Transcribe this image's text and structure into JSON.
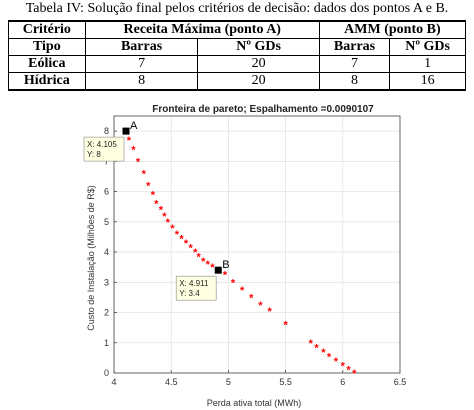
{
  "caption": "Tabela IV: Solução final pelos critérios de decisão: dados dos pontos A e B.",
  "table": {
    "header1": [
      "Critério",
      "Receita Máxima (ponto A)",
      "AMM (ponto B)"
    ],
    "header2": [
      "Tipo",
      "Barras",
      "Nº GDs",
      "Barras",
      "Nº GDs"
    ],
    "rows": [
      {
        "label": "Eólica",
        "values": [
          "7",
          "20",
          "7",
          "1"
        ]
      },
      {
        "label": "Hídrica",
        "values": [
          "8",
          "20",
          "8",
          "16"
        ]
      }
    ]
  },
  "chart_data": {
    "type": "scatter",
    "title": "Fronteira de pareto; Espalhamento =0.0090107",
    "xlabel": "Perda ativa total (MWh)",
    "ylabel": "Custo de Instalação (Milhões de R$)",
    "xlim": [
      4,
      6.5
    ],
    "ylim": [
      0,
      8.5
    ],
    "xticks": [
      "4",
      "4.5",
      "5",
      "5.5",
      "6",
      "6.5"
    ],
    "yticks": [
      "0",
      "1",
      "2",
      "3",
      "4",
      "5",
      "6",
      "7",
      "8"
    ],
    "grid": true,
    "marker_color": "#ff0000",
    "x": [
      4.105,
      4.13,
      4.17,
      4.21,
      4.26,
      4.3,
      4.34,
      4.37,
      4.41,
      4.44,
      4.47,
      4.51,
      4.55,
      4.59,
      4.63,
      4.67,
      4.71,
      4.74,
      4.78,
      4.82,
      4.86,
      4.911,
      4.97,
      5.04,
      5.12,
      5.2,
      5.28,
      5.36,
      5.5,
      5.72,
      5.77,
      5.83,
      5.88,
      5.94,
      6.0,
      6.05,
      6.1
    ],
    "y": [
      8.0,
      7.7,
      7.4,
      7.0,
      6.6,
      6.2,
      5.9,
      5.6,
      5.4,
      5.2,
      5.0,
      4.8,
      4.6,
      4.45,
      4.3,
      4.15,
      4.0,
      3.85,
      3.7,
      3.6,
      3.5,
      3.4,
      3.25,
      3.0,
      2.75,
      2.5,
      2.25,
      2.05,
      1.6,
      1.0,
      0.85,
      0.7,
      0.55,
      0.4,
      0.25,
      0.12,
      0.0
    ],
    "points": [
      {
        "label": "A",
        "x": 4.105,
        "y": 8.0,
        "tip_x": "X: 4.105",
        "tip_y": "Y: 8"
      },
      {
        "label": "B",
        "x": 4.911,
        "y": 3.4,
        "tip_x": "X: 4.911",
        "tip_y": "Y: 3.4"
      }
    ]
  }
}
